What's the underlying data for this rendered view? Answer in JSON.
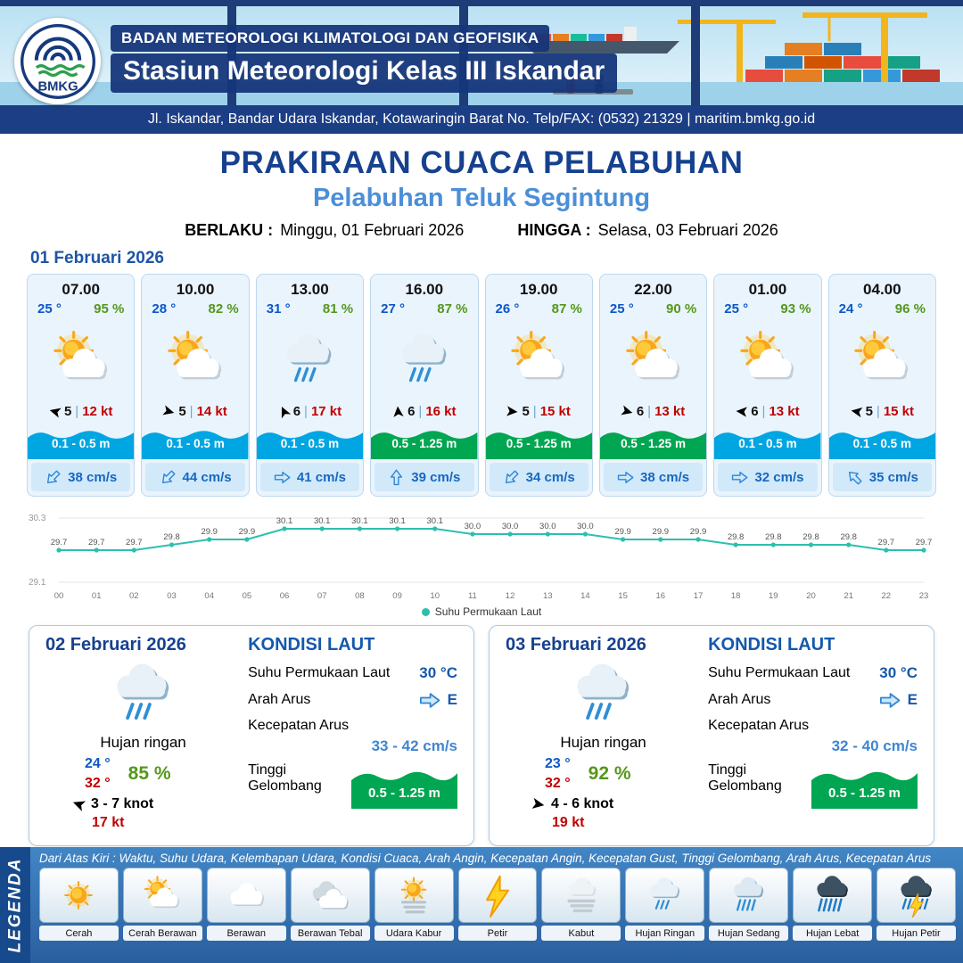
{
  "header": {
    "agency": "BADAN METEOROLOGI KLIMATOLOGI DAN GEOFISIKA",
    "station": "Stasiun Meteorologi Kelas III Iskandar",
    "address": "Jl. Iskandar, Bandar Udara Iskandar, Kotawaringin Barat No. Telp/FAX: (0532) 21329 | maritim.bmkg.go.id",
    "logo_text": "BMKG"
  },
  "title": {
    "main": "PRAKIRAAN CUACA PELABUHAN",
    "subtitle": "Pelabuhan Teluk Segintung",
    "berlaku_label": "BERLAKU :",
    "berlaku_value": "Minggu, 01 Februari 2026",
    "hingga_label": "HINGGA :",
    "hingga_value": "Selasa, 03 Februari 2026"
  },
  "colors": {
    "wave_blue": "#00a6e2",
    "wave_green": "#00a651",
    "temp_blue": "#0b57c9",
    "temp_max_red": "#c00000",
    "humidity_green": "#55971c",
    "gust_red": "#c00000",
    "current_blue": "#1668c1",
    "primary_blue": "#16418e",
    "subtitle_blue": "#4b8fd8",
    "line_teal": "#2cbfae"
  },
  "day1": {
    "date": "01 Februari 2026",
    "cards": [
      {
        "time": "07.00",
        "temp": "25 °",
        "humidity": "95 %",
        "icon": "cerah-berawan",
        "wind_dir": 195,
        "wind_speed": "5",
        "gust": "12 kt",
        "wave": "0.1 - 0.5 m",
        "wave_color": "blue",
        "current_dir": 135,
        "current": "38 cm/s"
      },
      {
        "time": "10.00",
        "temp": "28 °",
        "humidity": "82 %",
        "icon": "cerah-berawan",
        "wind_dir": 15,
        "wind_speed": "5",
        "gust": "14 kt",
        "wave": "0.1 - 0.5 m",
        "wave_color": "blue",
        "current_dir": 135,
        "current": "44 cm/s"
      },
      {
        "time": "13.00",
        "temp": "31 °",
        "humidity": "81 %",
        "icon": "hujan-ringan",
        "wind_dir": -115,
        "wind_speed": "6",
        "gust": "17 kt",
        "wave": "0.1 - 0.5 m",
        "wave_color": "blue",
        "current_dir": 0,
        "current": "41 cm/s"
      },
      {
        "time": "16.00",
        "temp": "27 °",
        "humidity": "87 %",
        "icon": "hujan-ringan",
        "wind_dir": -95,
        "wind_speed": "6",
        "gust": "16 kt",
        "wave": "0.5 - 1.25 m",
        "wave_color": "green",
        "current_dir": -90,
        "current": "39 cm/s"
      },
      {
        "time": "19.00",
        "temp": "26 °",
        "humidity": "87 %",
        "icon": "cerah-berawan",
        "wind_dir": 5,
        "wind_speed": "5",
        "gust": "15 kt",
        "wave": "0.5 - 1.25 m",
        "wave_color": "green",
        "current_dir": 135,
        "current": "34 cm/s"
      },
      {
        "time": "22.00",
        "temp": "25 °",
        "humidity": "90 %",
        "icon": "cerah-berawan",
        "wind_dir": 15,
        "wind_speed": "6",
        "gust": "13 kt",
        "wave": "0.5 - 1.25 m",
        "wave_color": "green",
        "current_dir": 0,
        "current": "38 cm/s"
      },
      {
        "time": "01.00",
        "temp": "25 °",
        "humidity": "93 %",
        "icon": "cerah-berawan",
        "wind_dir": 185,
        "wind_speed": "6",
        "gust": "13 kt",
        "wave": "0.1 - 0.5 m",
        "wave_color": "blue",
        "current_dir": 0,
        "current": "32 cm/s"
      },
      {
        "time": "04.00",
        "temp": "24 °",
        "humidity": "96 %",
        "icon": "cerah-berawan",
        "wind_dir": 190,
        "wind_speed": "5",
        "gust": "15 kt",
        "wave": "0.1 - 0.5 m",
        "wave_color": "blue",
        "current_dir": -135,
        "current": "35 cm/s"
      }
    ]
  },
  "chart_data": {
    "type": "line",
    "x": [
      "00",
      "01",
      "02",
      "03",
      "04",
      "05",
      "06",
      "07",
      "08",
      "09",
      "10",
      "11",
      "12",
      "13",
      "14",
      "15",
      "16",
      "17",
      "18",
      "19",
      "20",
      "21",
      "22",
      "23"
    ],
    "series": [
      {
        "name": "Suhu Permukaan Laut",
        "values": [
          29.7,
          29.7,
          29.7,
          29.8,
          29.9,
          29.9,
          30.1,
          30.1,
          30.1,
          30.1,
          30.1,
          30.0,
          30.0,
          30.0,
          30.0,
          29.9,
          29.9,
          29.9,
          29.8,
          29.8,
          29.8,
          29.8,
          29.7,
          29.7
        ]
      }
    ],
    "ylim": [
      29.1,
      30.3
    ],
    "yticks": [
      29.1,
      30.3
    ],
    "legend_position": "bottom",
    "line_color": "#2cbfae"
  },
  "day2": {
    "date": "02 Februari 2026",
    "icon": "hujan-ringan",
    "condition": "Hujan ringan",
    "temp_min": "24 °",
    "temp_max": "32 °",
    "humidity": "85 %",
    "wind_dir": 200,
    "wind": "3  - 7 knot",
    "gust": "17 kt",
    "sea": {
      "title": "KONDISI LAUT",
      "sst_label": "Suhu Permukaan Laut",
      "sst": "30 °C",
      "dir_label": "Arah Arus",
      "dir": "E",
      "speed_label": "Kecepatan Arus",
      "speed": "33  - 42 cm/s",
      "wave_label": "Tinggi Gelombang",
      "wave": "0.5 - 1.25 m"
    }
  },
  "day3": {
    "date": "03 Februari 2026",
    "icon": "hujan-ringan",
    "condition": "Hujan ringan",
    "temp_min": "23 °",
    "temp_max": "32 °",
    "humidity": "92 %",
    "wind_dir": 10,
    "wind": "4  - 6 knot",
    "gust": "19 kt",
    "sea": {
      "title": "KONDISI LAUT",
      "sst_label": "Suhu Permukaan Laut",
      "sst": "30 °C",
      "dir_label": "Arah Arus",
      "dir": "E",
      "speed_label": "Kecepatan Arus",
      "speed": "32 - 40 cm/s",
      "wave_label": "Tinggi Gelombang",
      "wave": "0.5 - 1.25 m"
    }
  },
  "legend": {
    "title": "LEGENDA",
    "note": "Dari Atas Kiri : Waktu, Suhu Udara, Kelembapan Udara, Kondisi Cuaca, Arah Angin, Kecepatan Angin, Kecepatan Gust, Tinggi Gelombang, Arah Arus, Kecepatan Arus",
    "items": [
      {
        "label": "Cerah",
        "icon": "cerah"
      },
      {
        "label": "Cerah Berawan",
        "icon": "cerah-berawan"
      },
      {
        "label": "Berawan",
        "icon": "berawan"
      },
      {
        "label": "Berawan Tebal",
        "icon": "berawan-tebal"
      },
      {
        "label": "Udara Kabur",
        "icon": "udara-kabur"
      },
      {
        "label": "Petir",
        "icon": "petir"
      },
      {
        "label": "Kabut",
        "icon": "kabut"
      },
      {
        "label": "Hujan Ringan",
        "icon": "hujan-ringan"
      },
      {
        "label": "Hujan Sedang",
        "icon": "hujan-sedang"
      },
      {
        "label": "Hujan Lebat",
        "icon": "hujan-lebat"
      },
      {
        "label": "Hujan Petir",
        "icon": "hujan-petir"
      }
    ]
  }
}
